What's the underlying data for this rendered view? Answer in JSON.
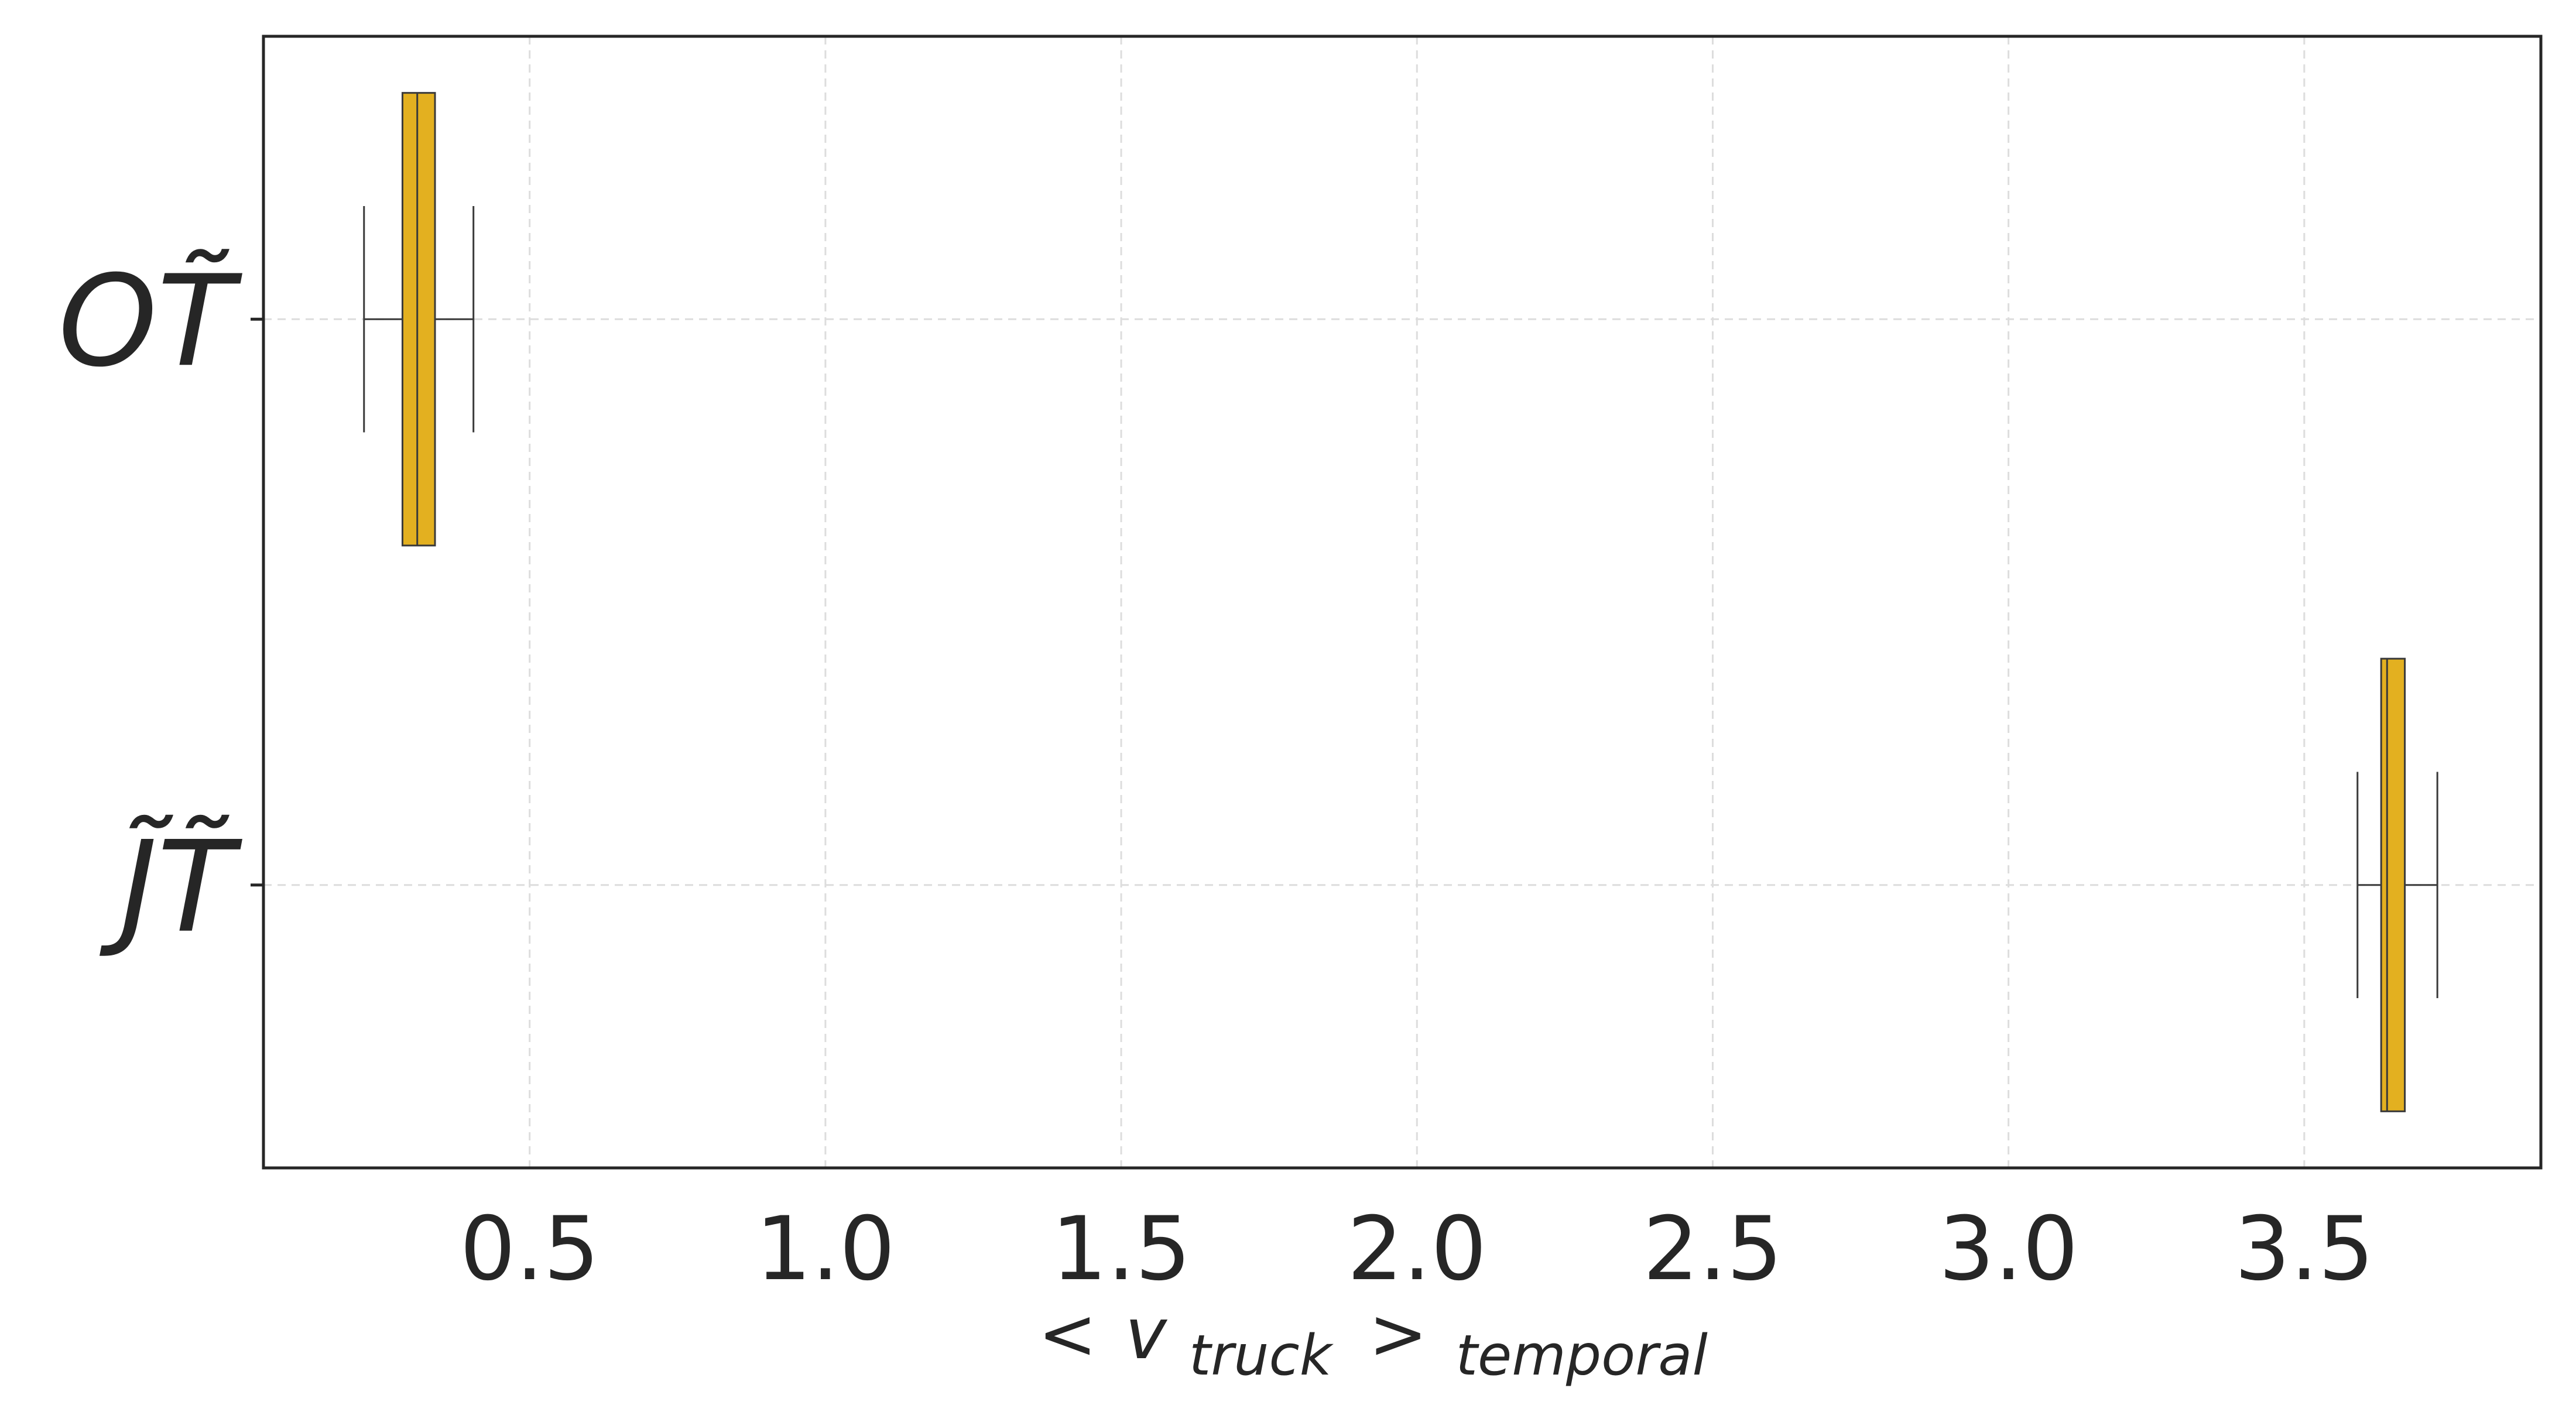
{
  "chart_data": {
    "type": "boxplot",
    "orientation": "horizontal",
    "xlabel": {
      "prefix": "<",
      "variable": "v",
      "variable_subscript": "truck",
      "suffix": ">",
      "suffix_subscript": "temporal"
    },
    "xlim": [
      0.05,
      3.9
    ],
    "xticks": [
      0.5,
      1.0,
      1.5,
      2.0,
      2.5,
      3.0,
      3.5
    ],
    "xtick_labels": [
      "0.5",
      "1.0",
      "1.5",
      "2.0",
      "2.5",
      "3.0",
      "3.5"
    ],
    "categories": [
      {
        "label": "OT̃",
        "whisker_low": 0.22,
        "q1": 0.285,
        "median": 0.31,
        "q3": 0.34,
        "whisker_high": 0.405
      },
      {
        "label": "J̃T̃",
        "whisker_low": 3.59,
        "q1": 3.63,
        "median": 3.64,
        "q3": 3.67,
        "whisker_high": 3.725
      }
    ],
    "box_color": "#e3b020",
    "edge_color": "#3a3a3a",
    "grid": true,
    "grid_color": "#dddddd",
    "legend": false
  }
}
